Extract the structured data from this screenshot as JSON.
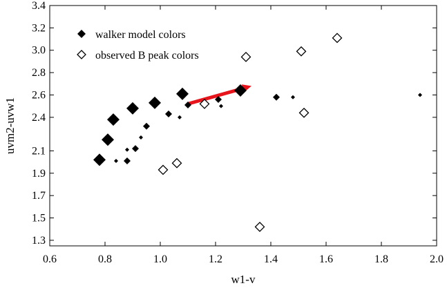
{
  "chart_data": {
    "type": "scatter",
    "xlabel": "w1-v",
    "ylabel": "uvm2-uvw1",
    "xlim": [
      0.6,
      2.0
    ],
    "ylim": [
      1.25,
      3.4
    ],
    "x_ticks": [
      {
        "value": 0.6,
        "label": "0.6"
      },
      {
        "value": 0.8,
        "label": "0.8"
      },
      {
        "value": 1.0,
        "label": "1.0"
      },
      {
        "value": 1.2,
        "label": "1.2"
      },
      {
        "value": 1.4,
        "label": "1.4"
      },
      {
        "value": 1.6,
        "label": "1.6"
      },
      {
        "value": 1.8,
        "label": "1.8"
      },
      {
        "value": 2.0,
        "label": "2.0"
      }
    ],
    "y_ticks": [
      {
        "value": 1.3,
        "label": "1.3"
      },
      {
        "value": 1.5,
        "label": "1.5"
      },
      {
        "value": 1.7,
        "label": "1.7"
      },
      {
        "value": 1.9,
        "label": "1.9"
      },
      {
        "value": 2.1,
        "label": "2.1"
      },
      {
        "value": 2.4,
        "label": "2.4"
      },
      {
        "value": 2.6,
        "label": "2.6"
      },
      {
        "value": 2.8,
        "label": "2.8"
      },
      {
        "value": 3.0,
        "label": "3.0"
      },
      {
        "value": 3.2,
        "label": "3.2"
      },
      {
        "value": 3.4,
        "label": "3.4"
      }
    ],
    "grid": false,
    "legend_position": "top-left",
    "series": [
      {
        "name": "walker model colors",
        "marker": "filled-diamond",
        "color": "#000000",
        "points": [
          {
            "x": 0.78,
            "y": 2.02,
            "size": "large"
          },
          {
            "x": 0.81,
            "y": 2.2,
            "size": "large"
          },
          {
            "x": 0.83,
            "y": 2.38,
            "size": "large"
          },
          {
            "x": 0.9,
            "y": 2.48,
            "size": "large"
          },
          {
            "x": 0.98,
            "y": 2.53,
            "size": "large"
          },
          {
            "x": 1.08,
            "y": 2.61,
            "size": "large"
          },
          {
            "x": 1.29,
            "y": 2.64,
            "size": "large"
          },
          {
            "x": 0.88,
            "y": 2.01,
            "size": "medium"
          },
          {
            "x": 0.91,
            "y": 2.12,
            "size": "medium"
          },
          {
            "x": 0.95,
            "y": 2.32,
            "size": "medium"
          },
          {
            "x": 1.03,
            "y": 2.43,
            "size": "medium"
          },
          {
            "x": 1.1,
            "y": 2.51,
            "size": "medium"
          },
          {
            "x": 1.21,
            "y": 2.56,
            "size": "medium"
          },
          {
            "x": 1.42,
            "y": 2.58,
            "size": "medium"
          },
          {
            "x": 0.84,
            "y": 2.01,
            "size": "small"
          },
          {
            "x": 0.88,
            "y": 2.11,
            "size": "small"
          },
          {
            "x": 0.93,
            "y": 2.22,
            "size": "small"
          },
          {
            "x": 1.07,
            "y": 2.4,
            "size": "small"
          },
          {
            "x": 1.22,
            "y": 2.5,
            "size": "small"
          },
          {
            "x": 1.48,
            "y": 2.58,
            "size": "small"
          },
          {
            "x": 1.94,
            "y": 2.6,
            "size": "small"
          }
        ]
      },
      {
        "name": "observed B peak colors",
        "marker": "open-diamond",
        "color": "#000000",
        "points": [
          {
            "x": 1.01,
            "y": 1.93
          },
          {
            "x": 1.06,
            "y": 1.99
          },
          {
            "x": 1.16,
            "y": 2.52
          },
          {
            "x": 1.31,
            "y": 2.94
          },
          {
            "x": 1.36,
            "y": 1.42
          },
          {
            "x": 1.51,
            "y": 2.99
          },
          {
            "x": 1.52,
            "y": 2.44
          },
          {
            "x": 1.64,
            "y": 3.11
          }
        ]
      }
    ],
    "arrow": {
      "color": "#e8141c",
      "from": {
        "x": 1.1,
        "y": 2.52
      },
      "to": {
        "x": 1.33,
        "y": 2.68
      }
    }
  }
}
